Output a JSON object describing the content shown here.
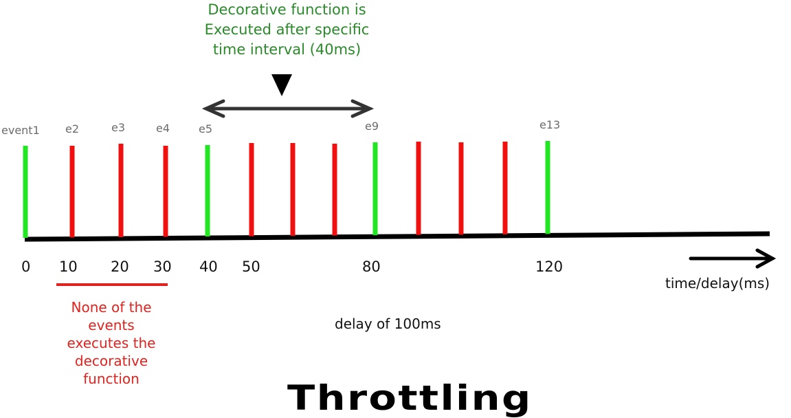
{
  "annotation_top": {
    "lines": [
      "Decorative function is",
      "Executed after specific",
      "time interval (40ms)"
    ],
    "color": "#2a8a2a"
  },
  "event_labels": [
    "event1",
    "e2",
    "e3",
    "e4",
    "e5",
    "e9",
    "e13"
  ],
  "events": [
    {
      "color": "green"
    },
    {
      "color": "red"
    },
    {
      "color": "red"
    },
    {
      "color": "red"
    },
    {
      "color": "green"
    },
    {
      "color": "red"
    },
    {
      "color": "red"
    },
    {
      "color": "red"
    },
    {
      "color": "green"
    },
    {
      "color": "red"
    },
    {
      "color": "red"
    },
    {
      "color": "red"
    },
    {
      "color": "green"
    }
  ],
  "ticks": [
    "0",
    "10",
    "20",
    "30",
    "40",
    "50",
    "80",
    "120"
  ],
  "axis_label": "time/delay(ms)",
  "red_note": {
    "lines": [
      "None of the",
      "events",
      "executes the",
      "decorative",
      "function"
    ],
    "color": "#e0231e"
  },
  "delay_label": "delay of 100ms",
  "title": "Throttling",
  "colors": {
    "green": "#22e622",
    "red": "#f01010",
    "axis": "#000000",
    "arrow": "#333333"
  }
}
